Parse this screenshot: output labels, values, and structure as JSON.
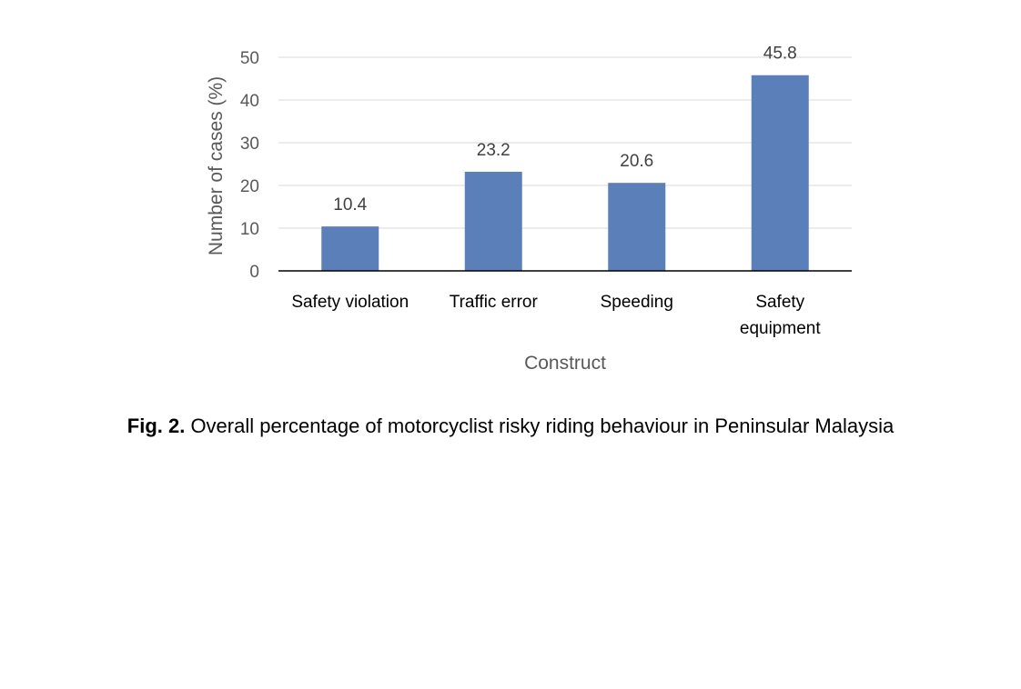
{
  "chart_data": {
    "type": "bar",
    "categories": [
      [
        "Safety violation"
      ],
      [
        "Traffic error"
      ],
      [
        "Speeding"
      ],
      [
        "Safety",
        "equipment"
      ]
    ],
    "values": [
      10.4,
      23.2,
      20.6,
      45.8
    ],
    "value_labels": [
      "10.4",
      "23.2",
      "20.6",
      "45.8"
    ],
    "xlabel": "Construct",
    "ylabel": "Number of cases (%)",
    "ylim": [
      0,
      50
    ],
    "yticks": [
      0,
      10,
      20,
      30,
      40,
      50
    ],
    "grid": true,
    "legend": "none",
    "colors": {
      "bar": "#5b80b9",
      "grid": "#d9d9d9",
      "axis": "#000000"
    }
  },
  "caption": {
    "label": "Fig. 2.",
    "text": " Overall percentage of motorcyclist risky riding behaviour in Peninsular Malaysia"
  }
}
